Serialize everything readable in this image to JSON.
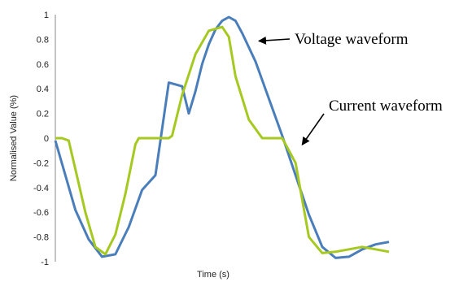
{
  "chart_data": {
    "type": "line",
    "xlabel": "Time (s)",
    "ylabel": "Normalised Value (%)",
    "ylim": [
      -1,
      1
    ],
    "yticks": [
      "1",
      "0.8",
      "0.6",
      "0.4",
      "0.2",
      "0",
      "-0.2",
      "-0.4",
      "-0.6",
      "-0.8",
      "-1"
    ],
    "grid": false,
    "legend": "none",
    "series": [
      {
        "key": "voltage",
        "color": "#4a7ebb",
        "x": [
          0,
          3,
          6,
          10,
          14,
          18,
          22,
          26,
          30,
          34,
          38,
          40,
          42,
          44,
          46,
          48,
          50,
          52,
          54,
          56,
          60,
          64,
          68,
          72,
          76,
          80,
          84,
          88,
          92,
          96,
          100
        ],
        "y": [
          -0.02,
          -0.3,
          -0.58,
          -0.82,
          -0.96,
          -0.94,
          -0.72,
          -0.42,
          -0.3,
          0.45,
          0.42,
          0.2,
          0.38,
          0.6,
          0.76,
          0.88,
          0.95,
          0.98,
          0.95,
          0.85,
          0.62,
          0.32,
          0.02,
          -0.3,
          -0.62,
          -0.88,
          -0.97,
          -0.96,
          -0.9,
          -0.86,
          -0.84
        ]
      },
      {
        "key": "current",
        "color": "#a5c920",
        "x": [
          0,
          2,
          4,
          6,
          9,
          12,
          15,
          18,
          21,
          24,
          25,
          26,
          30,
          34,
          35,
          38,
          42,
          46,
          50,
          52,
          54,
          58,
          62,
          66,
          68,
          72,
          74,
          76,
          80,
          84,
          88,
          92,
          96,
          100
        ],
        "y": [
          0.0,
          0.0,
          -0.02,
          -0.25,
          -0.6,
          -0.88,
          -0.94,
          -0.78,
          -0.45,
          -0.05,
          0.0,
          0.0,
          0.0,
          0.0,
          0.02,
          0.35,
          0.68,
          0.87,
          0.9,
          0.82,
          0.5,
          0.15,
          0.0,
          0.0,
          0.0,
          -0.2,
          -0.5,
          -0.8,
          -0.93,
          -0.92,
          -0.9,
          -0.88,
          -0.9,
          -0.92
        ]
      }
    ],
    "annotations": [
      {
        "key": "voltage",
        "text": "Voltage waveform"
      },
      {
        "key": "current",
        "text": "Current waveform"
      }
    ]
  }
}
